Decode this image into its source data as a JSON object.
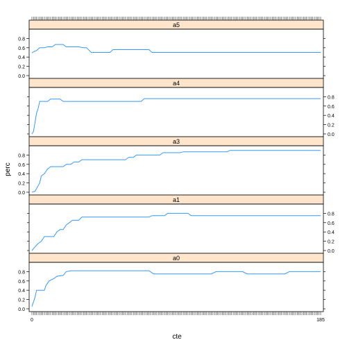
{
  "chart_data": {
    "type": "line",
    "xlabel": "cte",
    "ylabel": "perc",
    "xlim": [
      0,
      185
    ],
    "ylim": [
      -0.06,
      1.0
    ],
    "yticks": [
      "0.0",
      "0.2",
      "0.4",
      "0.6",
      "0.8"
    ],
    "x_tick_values": [
      0,
      185
    ],
    "x_tick_labels": [
      "0",
      "185"
    ],
    "series_color": "#3399ff",
    "strip_color": "#ffe5cc",
    "panels": [
      {
        "name": "a5",
        "y_axis_side": "left",
        "points": [
          [
            0,
            0.49
          ],
          [
            1,
            0.51
          ],
          [
            3,
            0.54
          ],
          [
            5,
            0.6
          ],
          [
            8,
            0.6
          ],
          [
            10,
            0.62
          ],
          [
            13,
            0.62
          ],
          [
            15,
            0.67
          ],
          [
            20,
            0.67
          ],
          [
            22,
            0.62
          ],
          [
            30,
            0.62
          ],
          [
            33,
            0.6
          ],
          [
            35,
            0.6
          ],
          [
            38,
            0.5
          ],
          [
            50,
            0.5
          ],
          [
            52,
            0.56
          ],
          [
            75,
            0.56
          ],
          [
            77,
            0.5
          ],
          [
            185,
            0.5
          ]
        ]
      },
      {
        "name": "a4",
        "y_axis_side": "right",
        "points": [
          [
            0,
            0.0
          ],
          [
            1,
            0.05
          ],
          [
            2,
            0.25
          ],
          [
            3,
            0.45
          ],
          [
            4,
            0.55
          ],
          [
            5,
            0.7
          ],
          [
            10,
            0.7
          ],
          [
            12,
            0.75
          ],
          [
            18,
            0.75
          ],
          [
            20,
            0.7
          ],
          [
            70,
            0.7
          ],
          [
            72,
            0.76
          ],
          [
            185,
            0.76
          ]
        ]
      },
      {
        "name": "a3",
        "y_axis_side": "left",
        "points": [
          [
            0,
            0.0
          ],
          [
            2,
            0.02
          ],
          [
            3,
            0.08
          ],
          [
            5,
            0.2
          ],
          [
            6,
            0.35
          ],
          [
            8,
            0.4
          ],
          [
            10,
            0.5
          ],
          [
            12,
            0.55
          ],
          [
            20,
            0.55
          ],
          [
            22,
            0.6
          ],
          [
            25,
            0.6
          ],
          [
            27,
            0.65
          ],
          [
            30,
            0.65
          ],
          [
            32,
            0.7
          ],
          [
            60,
            0.7
          ],
          [
            62,
            0.75
          ],
          [
            65,
            0.75
          ],
          [
            67,
            0.8
          ],
          [
            82,
            0.8
          ],
          [
            84,
            0.85
          ],
          [
            95,
            0.85
          ],
          [
            97,
            0.87
          ],
          [
            125,
            0.87
          ],
          [
            127,
            0.9
          ],
          [
            185,
            0.9
          ]
        ]
      },
      {
        "name": "a1",
        "y_axis_side": "right",
        "points": [
          [
            0,
            0.0
          ],
          [
            2,
            0.08
          ],
          [
            4,
            0.15
          ],
          [
            6,
            0.2
          ],
          [
            8,
            0.3
          ],
          [
            14,
            0.3
          ],
          [
            16,
            0.4
          ],
          [
            18,
            0.45
          ],
          [
            20,
            0.45
          ],
          [
            22,
            0.55
          ],
          [
            24,
            0.6
          ],
          [
            26,
            0.65
          ],
          [
            30,
            0.65
          ],
          [
            32,
            0.72
          ],
          [
            75,
            0.72
          ],
          [
            77,
            0.75
          ],
          [
            85,
            0.75
          ],
          [
            87,
            0.8
          ],
          [
            100,
            0.8
          ],
          [
            102,
            0.75
          ],
          [
            185,
            0.75
          ]
        ]
      },
      {
        "name": "a0",
        "y_axis_side": "left",
        "points": [
          [
            0,
            0.05
          ],
          [
            2,
            0.25
          ],
          [
            3,
            0.4
          ],
          [
            8,
            0.4
          ],
          [
            9,
            0.5
          ],
          [
            11,
            0.6
          ],
          [
            14,
            0.65
          ],
          [
            16,
            0.7
          ],
          [
            20,
            0.72
          ],
          [
            22,
            0.8
          ],
          [
            25,
            0.82
          ],
          [
            75,
            0.82
          ],
          [
            78,
            0.75
          ],
          [
            115,
            0.75
          ],
          [
            118,
            0.8
          ],
          [
            135,
            0.8
          ],
          [
            138,
            0.75
          ],
          [
            162,
            0.75
          ],
          [
            165,
            0.8
          ],
          [
            185,
            0.8
          ]
        ]
      }
    ]
  }
}
